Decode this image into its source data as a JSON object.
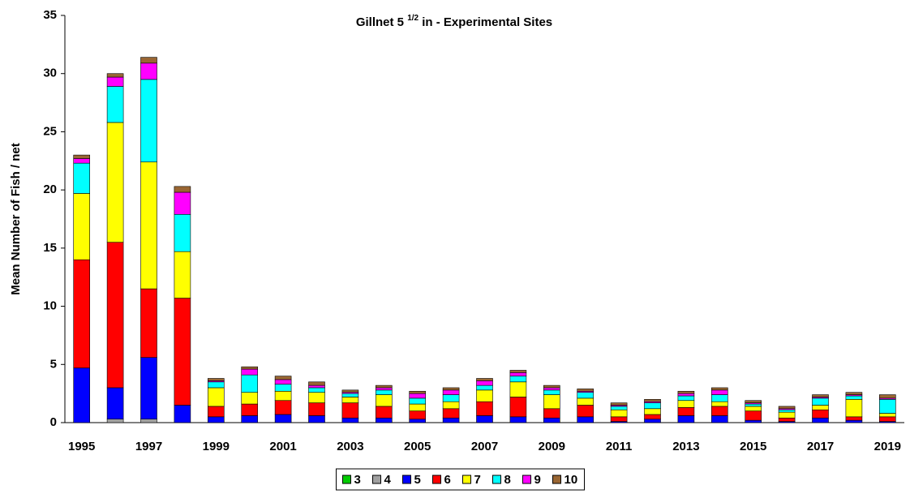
{
  "chart_data": {
    "type": "stacked_bar",
    "title": [
      "Gillnet 5",
      "1/2",
      "in - Experimental Sites"
    ],
    "y_label": "Mean Number of Fish  / net",
    "categories": [
      "1995",
      null,
      "1997",
      null,
      "1999",
      null,
      "2001",
      null,
      "2003",
      null,
      "2005",
      null,
      "2007",
      null,
      "2009",
      null,
      "2011",
      null,
      "2013",
      null,
      "2015",
      null,
      "2017",
      null,
      "2019"
    ],
    "series": [
      {
        "name": "3",
        "color": "#00cc00",
        "values": [
          0,
          0,
          0,
          0,
          0,
          0,
          0,
          0,
          0,
          0,
          0,
          0,
          0,
          0,
          0,
          0,
          0,
          0,
          0,
          0,
          0,
          0,
          0,
          0,
          0
        ]
      },
      {
        "name": "4",
        "color": "#a0a0a0",
        "values": [
          0,
          0.3,
          0.3,
          0,
          0,
          0,
          0,
          0,
          0,
          0,
          0,
          0,
          0,
          0,
          0,
          0,
          0,
          0,
          0,
          0,
          0,
          0,
          0,
          0,
          0
        ]
      },
      {
        "name": "5",
        "color": "#0000ff",
        "values": [
          4.7,
          2.7,
          5.3,
          1.5,
          0.5,
          0.6,
          0.7,
          0.6,
          0.4,
          0.4,
          0.3,
          0.4,
          0.6,
          0.5,
          0.4,
          0.5,
          0.1,
          0.3,
          0.6,
          0.6,
          0.2,
          0.1,
          0.4,
          0.2,
          0.1
        ]
      },
      {
        "name": "6",
        "color": "#ff0000",
        "values": [
          9.3,
          12.5,
          5.9,
          9.2,
          0.9,
          1.0,
          1.2,
          1.1,
          1.3,
          1.0,
          0.7,
          0.8,
          1.2,
          1.7,
          0.8,
          1.0,
          0.4,
          0.4,
          0.7,
          0.8,
          0.8,
          0.3,
          0.7,
          0.3,
          0.4
        ]
      },
      {
        "name": "7",
        "color": "#ffff00",
        "values": [
          5.7,
          10.3,
          10.9,
          4.0,
          1.6,
          1.0,
          0.8,
          0.9,
          0.5,
          1.0,
          0.6,
          0.6,
          1.0,
          1.3,
          1.2,
          0.6,
          0.6,
          0.5,
          0.6,
          0.4,
          0.4,
          0.5,
          0.4,
          1.5,
          0.3
        ]
      },
      {
        "name": "8",
        "color": "#00ffff",
        "values": [
          2.6,
          3.1,
          7.1,
          3.2,
          0.5,
          1.5,
          0.6,
          0.4,
          0.3,
          0.4,
          0.5,
          0.6,
          0.4,
          0.5,
          0.4,
          0.5,
          0.3,
          0.5,
          0.4,
          0.6,
          0.2,
          0.2,
          0.6,
          0.3,
          1.2
        ]
      },
      {
        "name": "9",
        "color": "#ff00ff",
        "values": [
          0.4,
          0.8,
          1.4,
          1.9,
          0.1,
          0.5,
          0.4,
          0.2,
          0.1,
          0.2,
          0.4,
          0.4,
          0.4,
          0.3,
          0.2,
          0.1,
          0.1,
          0.1,
          0.2,
          0.4,
          0.1,
          0.1,
          0.1,
          0.1,
          0.1
        ]
      },
      {
        "name": "10",
        "color": "#996633",
        "values": [
          0.3,
          0.3,
          0.5,
          0.5,
          0.2,
          0.2,
          0.3,
          0.3,
          0.2,
          0.2,
          0.2,
          0.2,
          0.2,
          0.2,
          0.2,
          0.2,
          0.2,
          0.2,
          0.2,
          0.2,
          0.2,
          0.2,
          0.2,
          0.2,
          0.3
        ]
      }
    ],
    "ylim": [
      0,
      35
    ],
    "yticks": [
      0,
      5,
      10,
      15,
      20,
      25,
      30,
      35
    ],
    "grid": false,
    "legend": "bottom"
  }
}
